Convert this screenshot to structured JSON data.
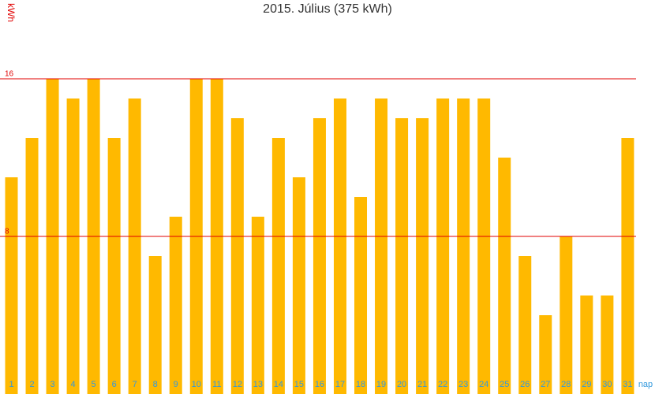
{
  "chart_data": {
    "type": "bar",
    "title": "2015. Július (375 kWh)",
    "x_label": "nap",
    "y_label": "kWh",
    "categories": [
      "1",
      "2",
      "3",
      "4",
      "5",
      "6",
      "7",
      "8",
      "9",
      "10",
      "11",
      "12",
      "13",
      "14",
      "15",
      "16",
      "17",
      "18",
      "19",
      "20",
      "21",
      "22",
      "23",
      "24",
      "25",
      "26",
      "27",
      "28",
      "29",
      "30",
      "31"
    ],
    "values": [
      11,
      13,
      16,
      15,
      16,
      13,
      15,
      7,
      9,
      16,
      16,
      14,
      9,
      13,
      11,
      14,
      15,
      10,
      15,
      14,
      14,
      15,
      15,
      15,
      12,
      7,
      4,
      8,
      5,
      5,
      13
    ],
    "color": "#ffb900",
    "grid_color": "#e00000",
    "ylim": [
      0,
      20
    ],
    "yticks": [
      8,
      16
    ],
    "grid": true
  }
}
